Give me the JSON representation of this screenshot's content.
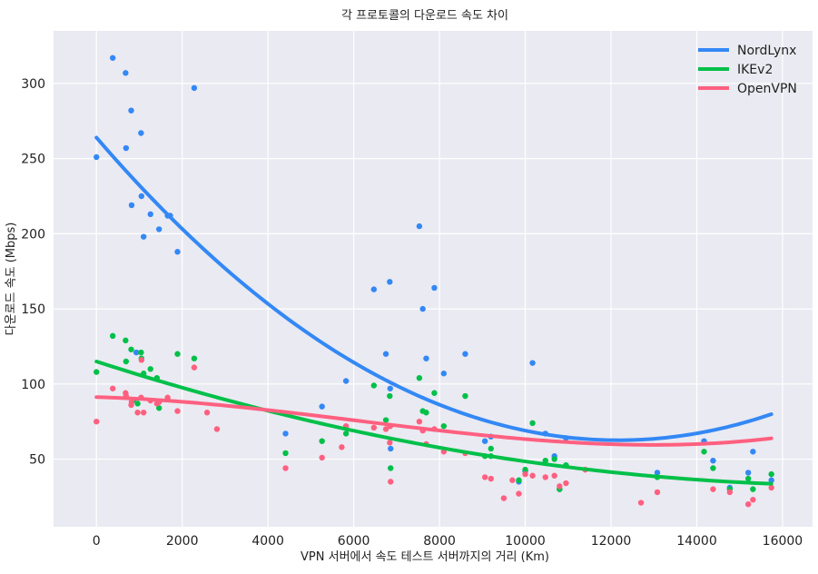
{
  "chart_data": {
    "type": "scatter",
    "title": "각 프로토콜의 다운로드 속도 차이",
    "xlabel": "VPN 서버에서 속도 테스트 서버까지의 거리 (Km)",
    "ylabel": "다운로드 속도 (Mbps)",
    "xlim": [
      -1000,
      16700
    ],
    "ylim": [
      5,
      335
    ],
    "xticks": [
      0,
      2000,
      4000,
      6000,
      8000,
      10000,
      12000,
      14000,
      16000
    ],
    "yticks": [
      50,
      100,
      150,
      200,
      250,
      300
    ],
    "grid": true,
    "legend_position": "top-right",
    "background": "#eaeaf2",
    "series": [
      {
        "name": "NordLynx",
        "color": "#3388f5",
        "trend": [
          264.0,
          -0.0331,
          1.36e-06
        ],
        "points": [
          [
            0,
            251
          ],
          [
            380,
            317
          ],
          [
            680,
            307
          ],
          [
            690,
            257
          ],
          [
            810,
            282
          ],
          [
            820,
            219
          ],
          [
            930,
            121
          ],
          [
            1040,
            267
          ],
          [
            1050,
            225
          ],
          [
            1100,
            198
          ],
          [
            1260,
            213
          ],
          [
            1460,
            203
          ],
          [
            1660,
            212
          ],
          [
            1720,
            212
          ],
          [
            1890,
            188
          ],
          [
            2280,
            297
          ],
          [
            4410,
            67
          ],
          [
            5260,
            85
          ],
          [
            5820,
            102
          ],
          [
            6470,
            163
          ],
          [
            6750,
            120
          ],
          [
            6840,
            168
          ],
          [
            6850,
            97
          ],
          [
            6860,
            57
          ],
          [
            7530,
            205
          ],
          [
            7610,
            150
          ],
          [
            7690,
            117
          ],
          [
            7880,
            164
          ],
          [
            8100,
            107
          ],
          [
            8600,
            120
          ],
          [
            9060,
            62
          ],
          [
            9200,
            65
          ],
          [
            9850,
            35
          ],
          [
            10000,
            42
          ],
          [
            10170,
            114
          ],
          [
            10470,
            67
          ],
          [
            10680,
            52
          ],
          [
            10800,
            30
          ],
          [
            10950,
            64
          ],
          [
            13080,
            41
          ],
          [
            14170,
            62
          ],
          [
            14380,
            49
          ],
          [
            14770,
            31
          ],
          [
            15200,
            41
          ],
          [
            15310,
            55
          ],
          [
            15740,
            36
          ]
        ]
      },
      {
        "name": "IKEv2",
        "color": "#00c049",
        "trend": [
          115.0,
          -0.00923,
          2.58e-07
        ],
        "points": [
          [
            0,
            108
          ],
          [
            380,
            132
          ],
          [
            680,
            129
          ],
          [
            690,
            115
          ],
          [
            810,
            123
          ],
          [
            860,
            89
          ],
          [
            960,
            87
          ],
          [
            1040,
            121
          ],
          [
            1050,
            117
          ],
          [
            1100,
            107
          ],
          [
            1260,
            110
          ],
          [
            1410,
            104
          ],
          [
            1460,
            84
          ],
          [
            1660,
            90
          ],
          [
            1890,
            120
          ],
          [
            2280,
            117
          ],
          [
            4410,
            54
          ],
          [
            5260,
            62
          ],
          [
            5820,
            67
          ],
          [
            6470,
            99
          ],
          [
            6750,
            76
          ],
          [
            6840,
            92
          ],
          [
            6850,
            72
          ],
          [
            6860,
            44
          ],
          [
            7530,
            104
          ],
          [
            7610,
            82
          ],
          [
            7690,
            81
          ],
          [
            7880,
            94
          ],
          [
            8100,
            72
          ],
          [
            8600,
            92
          ],
          [
            9060,
            52
          ],
          [
            9200,
            57
          ],
          [
            9200,
            52
          ],
          [
            9850,
            36
          ],
          [
            10000,
            43
          ],
          [
            10170,
            74
          ],
          [
            10470,
            49
          ],
          [
            10680,
            50
          ],
          [
            10800,
            30
          ],
          [
            10950,
            46
          ],
          [
            13080,
            38
          ],
          [
            14170,
            55
          ],
          [
            14380,
            44
          ],
          [
            14770,
            30
          ],
          [
            15200,
            37
          ],
          [
            15310,
            30
          ],
          [
            15740,
            40
          ]
        ]
      },
      {
        "name": "OpenVPN",
        "color": "#ff6080",
        "trend": [
          91.3,
          -0.000755,
          -4.5e-07,
          2.46e-11
        ],
        "points": [
          [
            0,
            75
          ],
          [
            380,
            97
          ],
          [
            680,
            94
          ],
          [
            690,
            92
          ],
          [
            810,
            86
          ],
          [
            820,
            88
          ],
          [
            960,
            81
          ],
          [
            1040,
            91
          ],
          [
            1050,
            116
          ],
          [
            1100,
            81
          ],
          [
            1260,
            89
          ],
          [
            1410,
            87
          ],
          [
            1460,
            88
          ],
          [
            1660,
            91
          ],
          [
            1890,
            82
          ],
          [
            2280,
            111
          ],
          [
            2580,
            81
          ],
          [
            2810,
            70
          ],
          [
            4410,
            44
          ],
          [
            5260,
            51
          ],
          [
            5820,
            72
          ],
          [
            5720,
            58
          ],
          [
            6470,
            71
          ],
          [
            6750,
            70
          ],
          [
            6840,
            61
          ],
          [
            6850,
            72
          ],
          [
            6860,
            35
          ],
          [
            7530,
            75
          ],
          [
            7610,
            69
          ],
          [
            7690,
            60
          ],
          [
            7880,
            70
          ],
          [
            8100,
            55
          ],
          [
            8600,
            54
          ],
          [
            9060,
            38
          ],
          [
            9200,
            37
          ],
          [
            9500,
            24
          ],
          [
            9700,
            36
          ],
          [
            9850,
            27
          ],
          [
            10000,
            40
          ],
          [
            10170,
            39
          ],
          [
            10470,
            38
          ],
          [
            10680,
            39
          ],
          [
            10800,
            32
          ],
          [
            10950,
            34
          ],
          [
            11400,
            43
          ],
          [
            12700,
            21
          ],
          [
            13080,
            28
          ],
          [
            14380,
            30
          ],
          [
            14770,
            28
          ],
          [
            15200,
            20
          ],
          [
            15310,
            23
          ],
          [
            15740,
            31
          ]
        ]
      }
    ]
  }
}
